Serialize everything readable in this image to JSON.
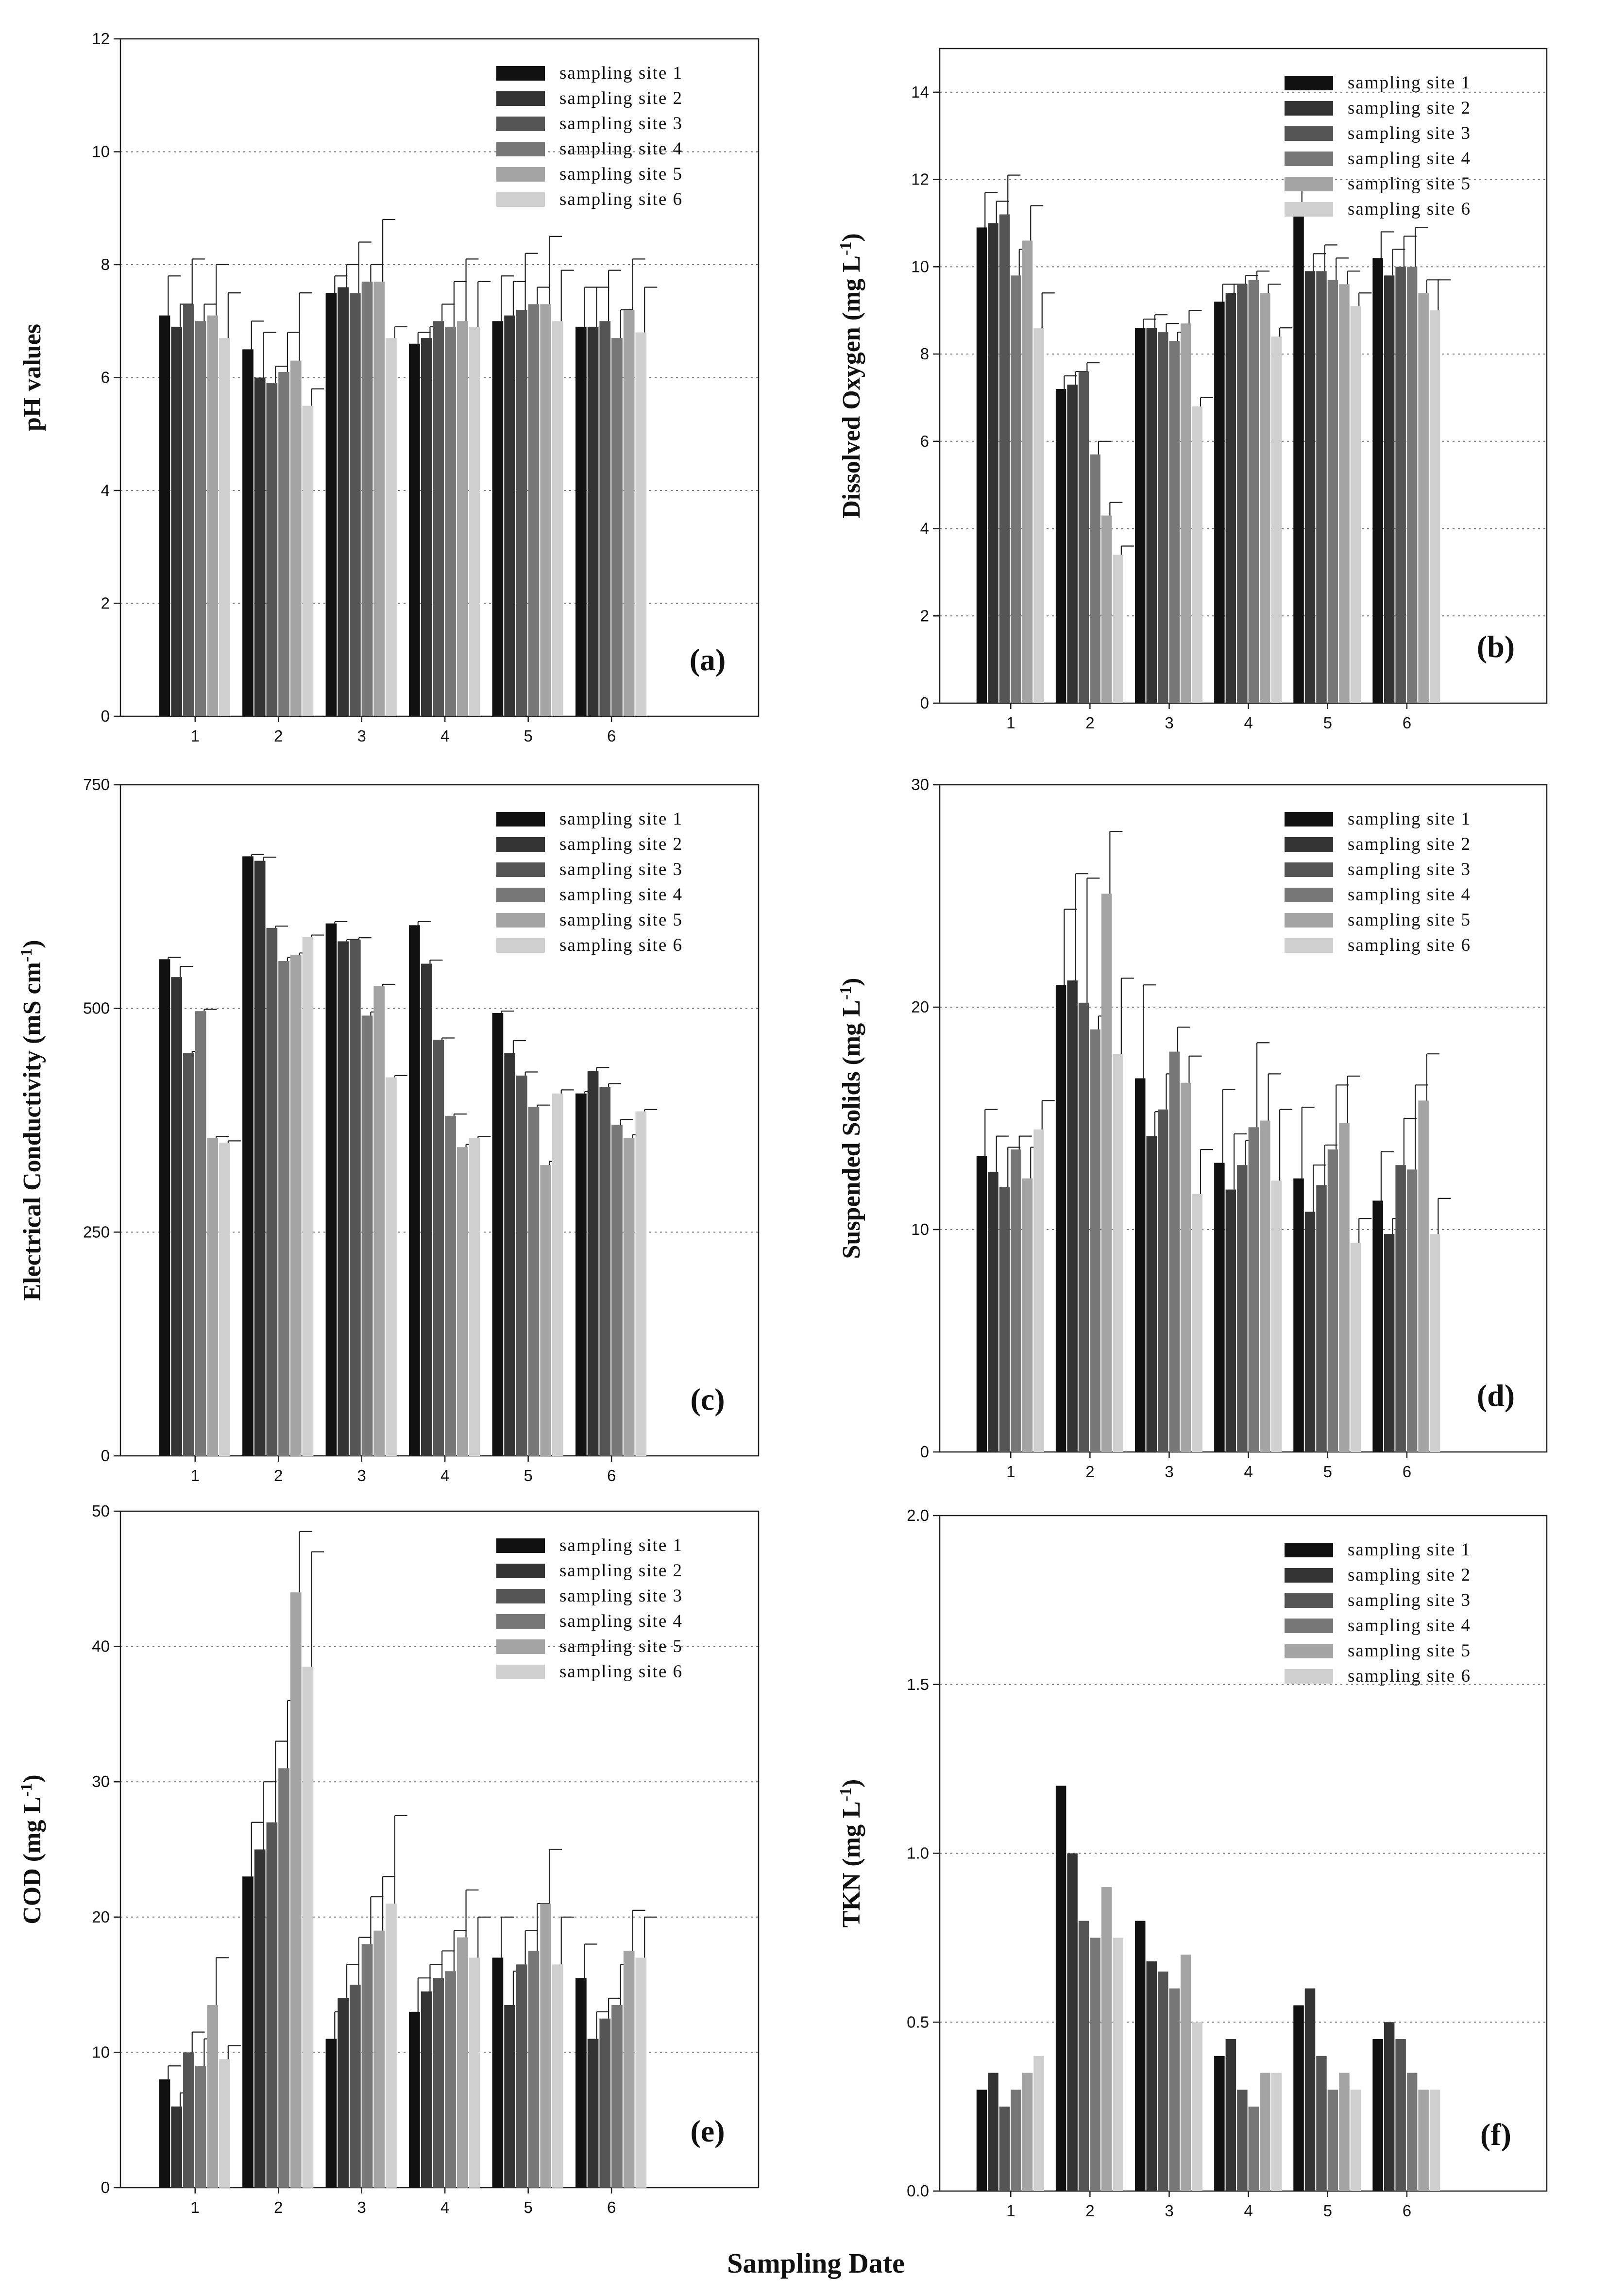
{
  "figure": {
    "x_axis_title": "Sampling Date",
    "site_colors": [
      "#111111",
      "#333333",
      "#555555",
      "#777777",
      "#a4a4a4",
      "#cfcfcf"
    ]
  },
  "chart_data": [
    {
      "type": "bar",
      "panel_tag": "(a)",
      "ylabel": "pH values",
      "ylabel_sup": "",
      "ylabel_tail": "",
      "ylim": [
        0,
        12
      ],
      "yticks": [
        0,
        2,
        4,
        6,
        8,
        10,
        12
      ],
      "ytick_labels": [
        "0",
        "2",
        "4",
        "6",
        "8",
        "10",
        "12"
      ],
      "gridlines": [
        2,
        4,
        6,
        8,
        10
      ],
      "categories": [
        "1",
        "2",
        "3",
        "4",
        "5",
        "6"
      ],
      "series": [
        {
          "name": "sampling site 1",
          "values": [
            7.1,
            6.5,
            7.5,
            6.6,
            7.0,
            6.9
          ],
          "errors": [
            0.7,
            0.5,
            0.3,
            0.2,
            0.8,
            0.7
          ]
        },
        {
          "name": "sampling site 2",
          "values": [
            6.9,
            6.0,
            7.6,
            6.7,
            7.1,
            6.9
          ],
          "errors": [
            0.4,
            0.8,
            0.4,
            0.2,
            0.6,
            0.7
          ]
        },
        {
          "name": "sampling site 3",
          "values": [
            7.3,
            5.9,
            7.5,
            7.0,
            7.2,
            7.0
          ],
          "errors": [
            0.8,
            0.3,
            0.9,
            0.3,
            1.0,
            0.9
          ]
        },
        {
          "name": "sampling site 4",
          "values": [
            7.0,
            6.1,
            7.7,
            6.9,
            7.3,
            6.7
          ],
          "errors": [
            0.3,
            0.7,
            0.3,
            0.8,
            0.3,
            0.5
          ]
        },
        {
          "name": "sampling site 5",
          "values": [
            7.1,
            6.3,
            7.7,
            7.0,
            7.3,
            7.2
          ],
          "errors": [
            0.9,
            1.2,
            1.1,
            1.1,
            1.2,
            0.9
          ]
        },
        {
          "name": "sampling site 6",
          "values": [
            6.7,
            5.5,
            6.7,
            6.9,
            7.0,
            6.8
          ],
          "errors": [
            0.8,
            0.3,
            0.2,
            0.8,
            0.9,
            0.8
          ]
        }
      ]
    },
    {
      "type": "bar",
      "panel_tag": "(b)",
      "ylabel": "Dissolved Oxygen (mg L",
      "ylabel_sup": "-1",
      "ylabel_tail": ")",
      "ylim": [
        0,
        15
      ],
      "yticks": [
        0,
        2,
        4,
        6,
        8,
        10,
        12,
        14
      ],
      "ytick_labels": [
        "0",
        "2",
        "4",
        "6",
        "8",
        "10",
        "12",
        "14"
      ],
      "gridlines": [
        2,
        4,
        6,
        8,
        10,
        12,
        14
      ],
      "categories": [
        "1",
        "2",
        "3",
        "4",
        "5",
        "6"
      ],
      "series": [
        {
          "name": "sampling site 1",
          "values": [
            10.9,
            7.2,
            8.6,
            9.2,
            11.2,
            10.2
          ],
          "errors": [
            0.8,
            0.3,
            0.2,
            0.4,
            0.6,
            0.6
          ]
        },
        {
          "name": "sampling site 2",
          "values": [
            11.0,
            7.3,
            8.6,
            9.4,
            9.9,
            9.8
          ],
          "errors": [
            0.5,
            0.3,
            0.3,
            0.2,
            0.4,
            0.6
          ]
        },
        {
          "name": "sampling site 3",
          "values": [
            11.2,
            7.6,
            8.5,
            9.6,
            9.9,
            10.0
          ],
          "errors": [
            0.9,
            0.2,
            0.2,
            0.2,
            0.6,
            0.7
          ]
        },
        {
          "name": "sampling site 4",
          "values": [
            9.8,
            5.7,
            8.3,
            9.7,
            9.7,
            10.0
          ],
          "errors": [
            0.6,
            0.3,
            0.2,
            0.2,
            0.5,
            0.9
          ]
        },
        {
          "name": "sampling site 5",
          "values": [
            10.6,
            4.3,
            8.7,
            9.4,
            9.6,
            9.4
          ],
          "errors": [
            0.8,
            0.3,
            0.3,
            0.2,
            0.3,
            0.3
          ]
        },
        {
          "name": "sampling site 6",
          "values": [
            8.6,
            3.4,
            6.8,
            8.4,
            9.1,
            9.0
          ],
          "errors": [
            0.8,
            0.2,
            0.2,
            0.2,
            0.3,
            0.7
          ]
        }
      ]
    },
    {
      "type": "bar",
      "panel_tag": "(c)",
      "ylabel": "Electrical Conductivity (mS cm",
      "ylabel_sup": "-1",
      "ylabel_tail": ")",
      "ylim": [
        0,
        750
      ],
      "yticks": [
        0,
        250,
        500,
        750
      ],
      "ytick_labels": [
        "0",
        "250",
        "500",
        "750"
      ],
      "gridlines": [
        250,
        500
      ],
      "categories": [
        "1",
        "2",
        "3",
        "4",
        "5",
        "6"
      ],
      "series": [
        {
          "name": "sampling site 1",
          "values": [
            555,
            670,
            595,
            593,
            495,
            405
          ],
          "errors": [
            2,
            2,
            2,
            4,
            2,
            2
          ]
        },
        {
          "name": "sampling site 2",
          "values": [
            535,
            665,
            575,
            550,
            450,
            430
          ],
          "errors": [
            12,
            4,
            2,
            4,
            14,
            4
          ]
        },
        {
          "name": "sampling site 3",
          "values": [
            450,
            590,
            577,
            465,
            425,
            412
          ],
          "errors": [
            2,
            2,
            2,
            2,
            4,
            4
          ]
        },
        {
          "name": "sampling site 4",
          "values": [
            497,
            553,
            492,
            380,
            390,
            370
          ],
          "errors": [
            2,
            4,
            4,
            2,
            2,
            6
          ]
        },
        {
          "name": "sampling site 5",
          "values": [
            355,
            560,
            525,
            345,
            325,
            355
          ],
          "errors": [
            2,
            2,
            2,
            3,
            4,
            4
          ]
        },
        {
          "name": "sampling site 6",
          "values": [
            350,
            580,
            423,
            355,
            405,
            385
          ],
          "errors": [
            2,
            2,
            2,
            2,
            4,
            2
          ]
        }
      ]
    },
    {
      "type": "bar",
      "panel_tag": "(d)",
      "ylabel": "Suspended Solids (mg L",
      "ylabel_sup": "-1",
      "ylabel_tail": ")",
      "ylim": [
        0,
        30
      ],
      "yticks": [
        0,
        10,
        20,
        30
      ],
      "ytick_labels": [
        "0",
        "10",
        "20",
        "30"
      ],
      "gridlines": [
        10,
        20
      ],
      "categories": [
        "1",
        "2",
        "3",
        "4",
        "5",
        "6"
      ],
      "series": [
        {
          "name": "sampling site 1",
          "values": [
            13.3,
            21.0,
            16.8,
            13.0,
            12.3,
            11.3
          ],
          "errors": [
            2.1,
            3.4,
            4.2,
            3.3,
            3.2,
            2.2
          ]
        },
        {
          "name": "sampling site 2",
          "values": [
            12.6,
            21.2,
            14.2,
            11.8,
            10.8,
            9.8
          ],
          "errors": [
            1.6,
            4.8,
            1.1,
            2.5,
            2.1,
            0.7
          ]
        },
        {
          "name": "sampling site 3",
          "values": [
            11.9,
            20.2,
            15.4,
            12.9,
            12.0,
            12.9
          ],
          "errors": [
            1.8,
            5.6,
            1.6,
            1.1,
            1.8,
            2.1
          ]
        },
        {
          "name": "sampling site 4",
          "values": [
            13.6,
            19.0,
            18.0,
            14.6,
            13.6,
            12.7
          ],
          "errors": [
            0.6,
            0.6,
            1.1,
            3.8,
            2.9,
            3.8
          ]
        },
        {
          "name": "sampling site 5",
          "values": [
            12.3,
            25.1,
            16.6,
            14.9,
            14.8,
            15.8
          ],
          "errors": [
            1.4,
            2.8,
            1.2,
            2.1,
            2.1,
            2.1
          ]
        },
        {
          "name": "sampling site 6",
          "values": [
            14.5,
            17.9,
            11.6,
            12.2,
            9.4,
            9.8
          ],
          "errors": [
            1.3,
            3.4,
            2.0,
            3.2,
            1.1,
            1.6
          ]
        }
      ]
    },
    {
      "type": "bar",
      "panel_tag": "(e)",
      "ylabel": "COD (mg L",
      "ylabel_sup": "-1",
      "ylabel_tail": ")",
      "ylim": [
        0,
        50
      ],
      "yticks": [
        0,
        10,
        20,
        30,
        40,
        50
      ],
      "ytick_labels": [
        "0",
        "10",
        "20",
        "30",
        "40",
        "50"
      ],
      "gridlines": [
        10,
        20,
        30,
        40
      ],
      "categories": [
        "1",
        "2",
        "3",
        "4",
        "5",
        "6"
      ],
      "series": [
        {
          "name": "sampling site 1",
          "values": [
            8.0,
            23.0,
            11.0,
            13.0,
            17.0,
            15.5
          ],
          "errors": [
            1.0,
            4.0,
            2.0,
            2.5,
            3.0,
            2.5
          ]
        },
        {
          "name": "sampling site 2",
          "values": [
            6.0,
            25.0,
            14.0,
            14.5,
            13.5,
            11.0
          ],
          "errors": [
            1.0,
            5.0,
            2.5,
            2.0,
            2.5,
            2.0
          ]
        },
        {
          "name": "sampling site 3",
          "values": [
            10.0,
            27.0,
            15.0,
            15.5,
            16.5,
            12.5
          ],
          "errors": [
            1.5,
            6.0,
            3.5,
            2.0,
            2.5,
            1.5
          ]
        },
        {
          "name": "sampling site 4",
          "values": [
            9.0,
            31.0,
            18.0,
            16.0,
            17.5,
            13.5
          ],
          "errors": [
            2.0,
            5.0,
            3.5,
            3.0,
            3.5,
            3.0
          ]
        },
        {
          "name": "sampling site 5",
          "values": [
            13.5,
            44.0,
            19.0,
            18.5,
            21.0,
            17.5
          ],
          "errors": [
            3.5,
            4.5,
            4.0,
            3.5,
            4.0,
            3.0
          ]
        },
        {
          "name": "sampling site 6",
          "values": [
            9.5,
            38.5,
            21.0,
            17.0,
            16.5,
            17.0
          ],
          "errors": [
            1.0,
            8.5,
            6.5,
            3.0,
            3.5,
            3.0
          ]
        }
      ]
    },
    {
      "type": "bar",
      "panel_tag": "(f)",
      "ylabel": "TKN (mg L",
      "ylabel_sup": "-1",
      "ylabel_tail": ")",
      "ylim": [
        0,
        2.0
      ],
      "yticks": [
        0,
        0.5,
        1.0,
        1.5,
        2.0
      ],
      "ytick_labels": [
        "0.0",
        "0.5",
        "1.0",
        "1.5",
        "2.0"
      ],
      "gridlines": [
        0.5,
        1.0,
        1.5
      ],
      "categories": [
        "1",
        "2",
        "3",
        "4",
        "5",
        "6"
      ],
      "series": [
        {
          "name": "sampling site 1",
          "values": [
            0.3,
            1.2,
            0.8,
            0.4,
            0.55,
            0.45
          ]
        },
        {
          "name": "sampling site 2",
          "values": [
            0.35,
            1.0,
            0.68,
            0.45,
            0.6,
            0.5
          ]
        },
        {
          "name": "sampling site 3",
          "values": [
            0.25,
            0.8,
            0.65,
            0.3,
            0.4,
            0.45
          ]
        },
        {
          "name": "sampling site 4",
          "values": [
            0.3,
            0.75,
            0.6,
            0.25,
            0.3,
            0.35
          ]
        },
        {
          "name": "sampling site 5",
          "values": [
            0.35,
            0.9,
            0.7,
            0.35,
            0.35,
            0.3
          ]
        },
        {
          "name": "sampling site 6",
          "values": [
            0.4,
            0.75,
            0.5,
            0.35,
            0.3,
            0.3
          ]
        }
      ]
    }
  ]
}
